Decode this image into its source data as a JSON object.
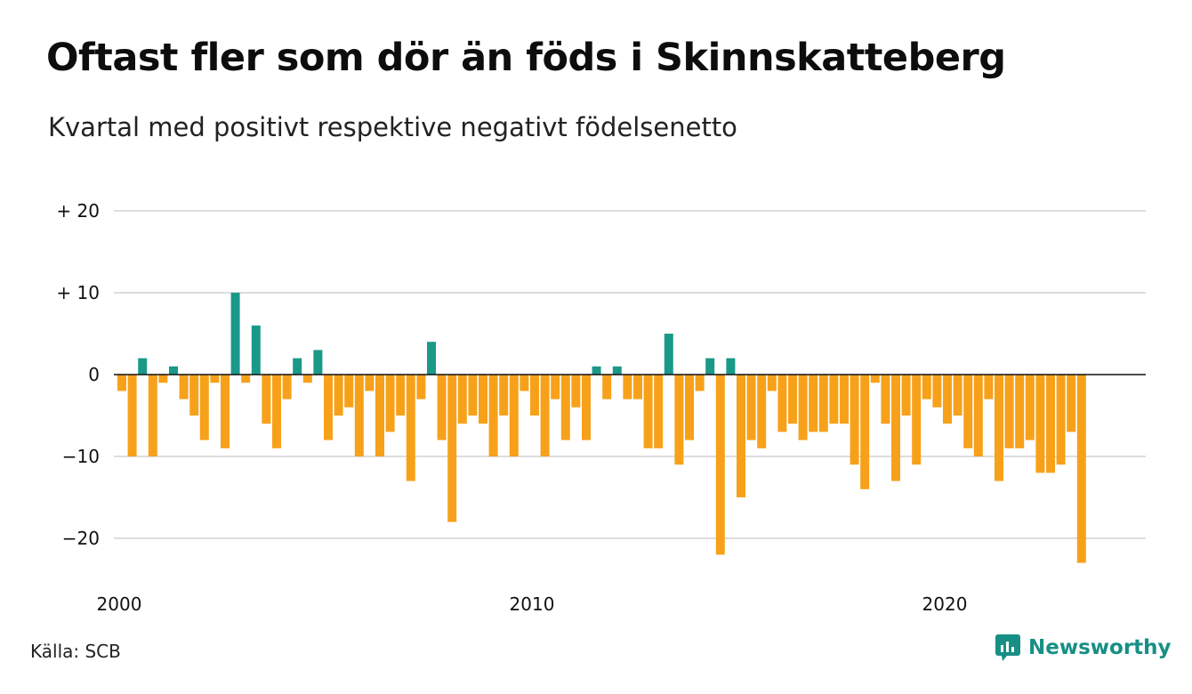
{
  "header": {
    "title": "Oftast fler som dör än föds i Skinnskatteberg",
    "subtitle": "Kvartal med positivt respektive negativt födelsenetto"
  },
  "footer": {
    "source": "Källa: SCB",
    "brand": "Newsworthy"
  },
  "colors": {
    "positive": "#1a9988",
    "negative": "#f7a11a",
    "grid": "#dddddd",
    "brand": "#178f85"
  },
  "chart_data": {
    "type": "bar",
    "x_start": "2000 Q1",
    "period": "quarter",
    "ylim": [
      -23,
      20
    ],
    "yticks": [
      {
        "value": 20,
        "label": "+ 20"
      },
      {
        "value": 10,
        "label": "+ 10"
      },
      {
        "value": 0,
        "label": "0"
      },
      {
        "value": -10,
        "label": "−10"
      },
      {
        "value": -20,
        "label": "−20"
      }
    ],
    "xticks": [
      {
        "year": 2000,
        "label": "2000"
      },
      {
        "year": 2010,
        "label": "2010"
      },
      {
        "year": 2020,
        "label": "2020"
      }
    ],
    "grid": true,
    "values": [
      -2,
      -10,
      2,
      -10,
      -1,
      1,
      -3,
      -5,
      -8,
      -1,
      -9,
      10,
      -1,
      6,
      -6,
      -9,
      -3,
      2,
      -1,
      3,
      -8,
      -5,
      -4,
      -10,
      -2,
      -10,
      -7,
      -5,
      -13,
      -3,
      4,
      -8,
      -18,
      -6,
      -5,
      -6,
      -10,
      -5,
      -10,
      -2,
      -5,
      -10,
      -3,
      -8,
      -4,
      -8,
      1,
      -3,
      1,
      -3,
      -3,
      -9,
      -9,
      5,
      -11,
      -8,
      -2,
      2,
      -22,
      2,
      -15,
      -8,
      -9,
      -2,
      -7,
      -6,
      -8,
      -7,
      -7,
      -6,
      -6,
      -11,
      -14,
      -1,
      -6,
      -13,
      -5,
      -11,
      -3,
      -4,
      -6,
      -5,
      -9,
      -10,
      -3,
      -13,
      -9,
      -9,
      -8,
      -12,
      -12,
      -11,
      -7,
      -23
    ]
  }
}
